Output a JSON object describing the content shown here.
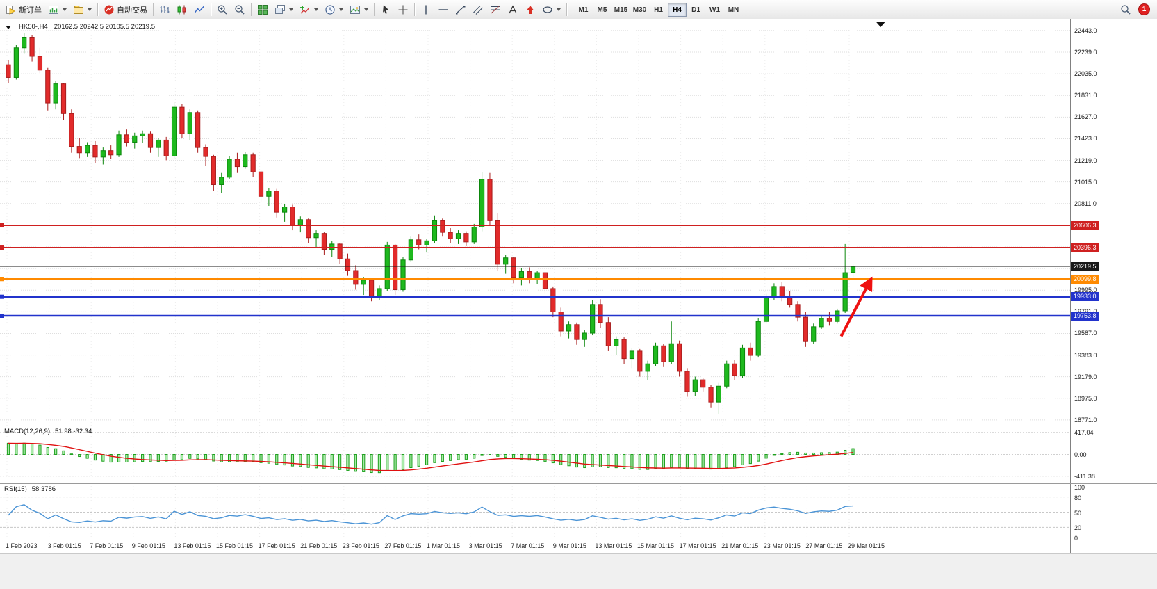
{
  "toolbar": {
    "new_order_label": "新订单",
    "autotrading_label": "自动交易",
    "timeframes": [
      "M1",
      "M5",
      "M15",
      "M30",
      "H1",
      "H4",
      "D1",
      "W1",
      "MN"
    ],
    "active_timeframe": "H4",
    "notification_badge": "1",
    "icon_buttons": [
      "new-order",
      "new-chart",
      "profiles",
      "autotrading",
      "bar-chart-type",
      "candlestick-type",
      "line-chart-type",
      "zoom-in",
      "zoom-out",
      "tile-windows",
      "cascade-windows",
      "add-indicator",
      "periods",
      "templates",
      "cursor",
      "crosshair",
      "vertical-line",
      "horizontal-line",
      "trendline",
      "equidistant-channel",
      "fibonacci",
      "text",
      "arrow-marker",
      "shapes",
      "magnifier",
      "notification"
    ]
  },
  "chart": {
    "symbol_period": "HK50-,H4",
    "ohlc_text": "20162.5 20242.5 20105.5 20219.5"
  },
  "chart_data": {
    "type": "candlestick",
    "symbol": "HK50-",
    "period": "H4",
    "current_ohlc": {
      "open": 20162.5,
      "high": 20242.5,
      "low": 20105.5,
      "close": 20219.5
    },
    "x_labels": [
      "1 Feb 2023",
      "3 Feb 01:15",
      "7 Feb 01:15",
      "9 Feb 01:15",
      "13 Feb 01:15",
      "15 Feb 01:15",
      "17 Feb 01:15",
      "21 Feb 01:15",
      "23 Feb 01:15",
      "27 Feb 01:15",
      "1 Mar 01:15",
      "3 Mar 01:15",
      "7 Mar 01:15",
      "9 Mar 01:15",
      "13 Mar 01:15",
      "15 Mar 01:15",
      "17 Mar 01:15",
      "21 Mar 01:15",
      "23 Mar 01:15",
      "27 Mar 01:15",
      "29 Mar 01:15"
    ],
    "y_axis": {
      "ticks": [
        22443.0,
        22239.0,
        22035.0,
        21831.0,
        21627.0,
        21423.0,
        21219.0,
        21015.0,
        20811.0,
        19995.0,
        19791.0,
        19587.0,
        19383.0,
        19179.0,
        18975.0,
        18771.0
      ],
      "grid_step_ticks": [
        20607.0,
        20403.0,
        20199.0
      ],
      "range": [
        18732,
        22535
      ]
    },
    "candles": [
      [
        22120,
        22160,
        21950,
        22000
      ],
      [
        22000,
        22310,
        21980,
        22280
      ],
      [
        22280,
        22420,
        22230,
        22380
      ],
      [
        22380,
        22400,
        22150,
        22200
      ],
      [
        22200,
        22280,
        22040,
        22070
      ],
      [
        22070,
        22090,
        21690,
        21760
      ],
      [
        21760,
        21970,
        21700,
        21940
      ],
      [
        21940,
        21950,
        21600,
        21660
      ],
      [
        21660,
        21700,
        21290,
        21350
      ],
      [
        21350,
        21430,
        21240,
        21290
      ],
      [
        21290,
        21390,
        21250,
        21360
      ],
      [
        21360,
        21400,
        21190,
        21250
      ],
      [
        21250,
        21340,
        21180,
        21310
      ],
      [
        21310,
        21360,
        21230,
        21270
      ],
      [
        21270,
        21500,
        21250,
        21460
      ],
      [
        21460,
        21510,
        21350,
        21390
      ],
      [
        21390,
        21480,
        21330,
        21450
      ],
      [
        21450,
        21500,
        21380,
        21470
      ],
      [
        21470,
        21490,
        21290,
        21340
      ],
      [
        21340,
        21430,
        21250,
        21410
      ],
      [
        21410,
        21440,
        21220,
        21260
      ],
      [
        21260,
        21770,
        21240,
        21720
      ],
      [
        21720,
        21750,
        21430,
        21470
      ],
      [
        21470,
        21700,
        21410,
        21670
      ],
      [
        21670,
        21690,
        21290,
        21340
      ],
      [
        21340,
        21370,
        21170,
        21255
      ],
      [
        21255,
        21270,
        20930,
        20990
      ],
      [
        20990,
        21100,
        20910,
        21060
      ],
      [
        21060,
        21260,
        21040,
        21230
      ],
      [
        21230,
        21290,
        21100,
        21160
      ],
      [
        21160,
        21300,
        21140,
        21270
      ],
      [
        21270,
        21290,
        21060,
        21110
      ],
      [
        21110,
        21130,
        20830,
        20880
      ],
      [
        20880,
        20960,
        20790,
        20930
      ],
      [
        20930,
        20950,
        20680,
        20730
      ],
      [
        20730,
        20810,
        20640,
        20780
      ],
      [
        20780,
        20800,
        20560,
        20610
      ],
      [
        20610,
        20690,
        20540,
        20660
      ],
      [
        20660,
        20670,
        20440,
        20490
      ],
      [
        20490,
        20560,
        20400,
        20530
      ],
      [
        20530,
        20540,
        20330,
        20380
      ],
      [
        20380,
        20460,
        20310,
        20430
      ],
      [
        20430,
        20440,
        20240,
        20290
      ],
      [
        20290,
        20340,
        20130,
        20180
      ],
      [
        20180,
        20230,
        20000,
        20050
      ],
      [
        20050,
        20120,
        19950,
        20090
      ],
      [
        20090,
        20100,
        19890,
        19940
      ],
      [
        19940,
        20040,
        19900,
        20010
      ],
      [
        20010,
        20450,
        19990,
        20420
      ],
      [
        20420,
        20430,
        19950,
        20000
      ],
      [
        20000,
        20310,
        19980,
        20280
      ],
      [
        20280,
        20500,
        20260,
        20470
      ],
      [
        20470,
        20520,
        20380,
        20420
      ],
      [
        20420,
        20480,
        20350,
        20460
      ],
      [
        20460,
        20700,
        20440,
        20650
      ],
      [
        20650,
        20670,
        20500,
        20540
      ],
      [
        20540,
        20580,
        20440,
        20480
      ],
      [
        20480,
        20560,
        20430,
        20530
      ],
      [
        20530,
        20550,
        20410,
        20450
      ],
      [
        20450,
        20620,
        20430,
        20590
      ],
      [
        20590,
        21110,
        20550,
        21040
      ],
      [
        21040,
        21100,
        20600,
        20650
      ],
      [
        20650,
        20720,
        20180,
        20240
      ],
      [
        20240,
        20330,
        20150,
        20300
      ],
      [
        20300,
        20310,
        20060,
        20110
      ],
      [
        20110,
        20200,
        20040,
        20170
      ],
      [
        20170,
        20210,
        20060,
        20100
      ],
      [
        20100,
        20180,
        20050,
        20160
      ],
      [
        20160,
        20170,
        19960,
        20010
      ],
      [
        20010,
        20030,
        19740,
        19790
      ],
      [
        19790,
        19830,
        19560,
        19610
      ],
      [
        19610,
        19700,
        19540,
        19670
      ],
      [
        19670,
        19690,
        19480,
        19530
      ],
      [
        19530,
        19620,
        19460,
        19590
      ],
      [
        19590,
        19900,
        19570,
        19860
      ],
      [
        19860,
        19910,
        19640,
        19690
      ],
      [
        19690,
        19740,
        19420,
        19470
      ],
      [
        19470,
        19560,
        19380,
        19530
      ],
      [
        19530,
        19550,
        19300,
        19350
      ],
      [
        19350,
        19450,
        19260,
        19420
      ],
      [
        19420,
        19440,
        19180,
        19230
      ],
      [
        19230,
        19330,
        19150,
        19300
      ],
      [
        19300,
        19500,
        19280,
        19470
      ],
      [
        19470,
        19490,
        19270,
        19320
      ],
      [
        19320,
        19700,
        19300,
        19490
      ],
      [
        19490,
        19520,
        19180,
        19230
      ],
      [
        19230,
        19260,
        18990,
        19040
      ],
      [
        19040,
        19180,
        19000,
        19150
      ],
      [
        19150,
        19170,
        19040,
        19080
      ],
      [
        19080,
        19100,
        18890,
        18940
      ],
      [
        18940,
        19120,
        18830,
        19090
      ],
      [
        19090,
        19330,
        19070,
        19300
      ],
      [
        19300,
        19340,
        19150,
        19190
      ],
      [
        19190,
        19480,
        19170,
        19450
      ],
      [
        19450,
        19500,
        19330,
        19380
      ],
      [
        19380,
        19730,
        19360,
        19700
      ],
      [
        19700,
        19960,
        19680,
        19930
      ],
      [
        19930,
        20060,
        19900,
        20030
      ],
      [
        20030,
        20070,
        19890,
        19930
      ],
      [
        19930,
        19990,
        19830,
        19860
      ],
      [
        19860,
        19890,
        19700,
        19740
      ],
      [
        19740,
        19790,
        19460,
        19510
      ],
      [
        19510,
        19680,
        19490,
        19650
      ],
      [
        19650,
        19760,
        19630,
        19730
      ],
      [
        19730,
        19790,
        19660,
        19700
      ],
      [
        19700,
        19820,
        19680,
        19800
      ],
      [
        19800,
        20430,
        19780,
        20160
      ],
      [
        20162.5,
        20242.5,
        20105.5,
        20219.5
      ]
    ],
    "hlines": [
      {
        "price": 20606.3,
        "label": "20606.3",
        "color": "#cf2020",
        "width": 2
      },
      {
        "price": 20396.3,
        "label": "20396.3",
        "color": "#cf2020",
        "width": 2
      },
      {
        "price": 20219.5,
        "label": "20219.5",
        "color": "#1a1a1a",
        "width": 1,
        "role": "bid"
      },
      {
        "price": 20099.8,
        "label": "20099.8",
        "color": "#ff8a00",
        "width": 2.5
      },
      {
        "price": 19933.0,
        "label": "19933.0",
        "color": "#2233cc",
        "width": 2.5
      },
      {
        "price": 19753.8,
        "label": "19753.8",
        "color": "#2233cc",
        "width": 2.5
      }
    ],
    "annotation_arrow": {
      "from_bar": 105.5,
      "from_price": 19560,
      "to_bar": 109.3,
      "to_price": 20100,
      "color": "#ee1111"
    },
    "indicators": {
      "macd": {
        "label": "MACD(12,26,9)",
        "display_values": "51.98 -32.34",
        "axis_labels": [
          "417.04",
          "0.00",
          "-411.38"
        ],
        "fast": 12,
        "slow": 26,
        "signal": 9,
        "hist_color": "#1ea11e",
        "hist_fill": "#a9eaa9",
        "signal_color": "#e01010"
      },
      "rsi": {
        "label": "RSI(15)",
        "display_value": "58.3786",
        "axis_labels": [
          "100",
          "80",
          "50",
          "20",
          "0"
        ],
        "period": 15,
        "levels": [
          80,
          50,
          20
        ],
        "line_color": "#4b94d6"
      }
    },
    "colors": {
      "up": "#1eb91e",
      "up_stroke": "#0c870c",
      "down": "#e22b2b",
      "down_stroke": "#a81d1d",
      "grid": "#dedede",
      "background": "#ffffff"
    }
  }
}
